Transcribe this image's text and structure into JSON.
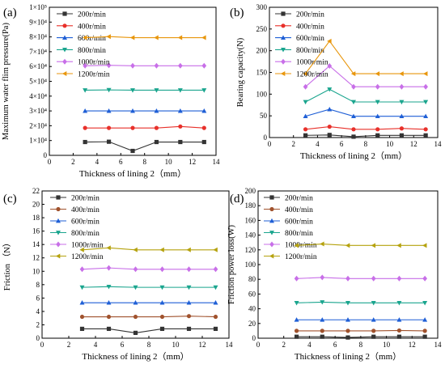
{
  "chart_data": [
    {
      "type": "line",
      "panel_label": "(a)",
      "xlabel": "Thickness of lining 2（mm）",
      "ylabel": "Maximum water flim pressure(Pa)",
      "xlim": [
        0,
        14
      ],
      "ylim": [
        0,
        100000
      ],
      "xticks": [
        "0",
        "2",
        "4",
        "6",
        "8",
        "10",
        "12",
        "14"
      ],
      "yticks": [
        "0",
        "1×10⁴",
        "2×10⁴",
        "3×10⁴",
        "4×10⁴",
        "5×10⁴",
        "6×10⁴",
        "7×10⁴",
        "8×10⁴",
        "9×10⁴",
        "1×10⁵"
      ],
      "legend_position": "top-left",
      "x": [
        3,
        5,
        7,
        9,
        11,
        13
      ],
      "series": [
        {
          "name": "200r/min",
          "color": "#333333",
          "marker": "square",
          "values": [
            9000,
            9200,
            3000,
            9000,
            9000,
            9000
          ]
        },
        {
          "name": "400r/min",
          "color": "#e8302a",
          "marker": "circle",
          "values": [
            18500,
            18500,
            18500,
            18500,
            19500,
            18500
          ]
        },
        {
          "name": "600r/min",
          "color": "#1f5fd6",
          "marker": "triangle-up",
          "values": [
            30000,
            30000,
            30000,
            30000,
            30000,
            30000
          ]
        },
        {
          "name": "800r/min",
          "color": "#1aa58e",
          "marker": "triangle-down",
          "values": [
            44000,
            44200,
            44000,
            44000,
            44000,
            44000
          ]
        },
        {
          "name": "1000r/min",
          "color": "#c86fe8",
          "marker": "diamond",
          "values": [
            60500,
            60800,
            60500,
            60500,
            60500,
            60500
          ]
        },
        {
          "name": "1200r/min",
          "color": "#e8960c",
          "marker": "triangle-left",
          "values": [
            79500,
            80200,
            79500,
            79500,
            79500,
            79500
          ]
        }
      ]
    },
    {
      "type": "line",
      "panel_label": "(b)",
      "xlabel": "Thickness of lining 2（mm）",
      "ylabel": "Bearing capacity(N)",
      "xlim": [
        0,
        14
      ],
      "ylim": [
        0,
        300
      ],
      "xticks": [
        "0",
        "2",
        "4",
        "6",
        "8",
        "10",
        "12",
        "14"
      ],
      "yticks": [
        "0",
        "50",
        "100",
        "150",
        "200",
        "250",
        "300"
      ],
      "legend_position": "top-left",
      "x": [
        3,
        5,
        7,
        9,
        11,
        13
      ],
      "series": [
        {
          "name": "200r/min",
          "color": "#333333",
          "marker": "square",
          "values": [
            5,
            6,
            2,
            5,
            5,
            5
          ]
        },
        {
          "name": "400r/min",
          "color": "#e8302a",
          "marker": "circle",
          "values": [
            19,
            25,
            19,
            19,
            21,
            19
          ]
        },
        {
          "name": "600r/min",
          "color": "#1f5fd6",
          "marker": "triangle-up",
          "values": [
            49,
            65,
            49,
            49,
            49,
            49
          ]
        },
        {
          "name": "800r/min",
          "color": "#1aa58e",
          "marker": "triangle-down",
          "values": [
            82,
            111,
            82,
            82,
            82,
            82
          ]
        },
        {
          "name": "1000r/min",
          "color": "#c86fe8",
          "marker": "diamond",
          "values": [
            117,
            165,
            117,
            117,
            117,
            117
          ]
        },
        {
          "name": "1200r/min",
          "color": "#e8960c",
          "marker": "triangle-left",
          "values": [
            147,
            222,
            147,
            147,
            147,
            147
          ]
        }
      ]
    },
    {
      "type": "line",
      "panel_label": "(c)",
      "xlabel": "Thickness of lining 2（mm）",
      "ylabel": "Friction （N）",
      "xlim": [
        0,
        14
      ],
      "ylim": [
        0,
        22
      ],
      "xticks": [
        "0",
        "2",
        "4",
        "6",
        "8",
        "10",
        "12",
        "14"
      ],
      "yticks": [
        "0",
        "2",
        "4",
        "6",
        "8",
        "10",
        "12",
        "14",
        "16",
        "18",
        "20",
        "22"
      ],
      "legend_position": "top-left",
      "x": [
        3,
        5,
        7,
        9,
        11,
        13
      ],
      "series": [
        {
          "name": "200r/min",
          "color": "#333333",
          "marker": "square",
          "values": [
            1.4,
            1.4,
            0.8,
            1.4,
            1.4,
            1.4
          ]
        },
        {
          "name": "400r/min",
          "color": "#a0522d",
          "marker": "circle",
          "values": [
            3.2,
            3.2,
            3.2,
            3.2,
            3.3,
            3.2
          ]
        },
        {
          "name": "600r/min",
          "color": "#1f5fd6",
          "marker": "triangle-up",
          "values": [
            5.3,
            5.3,
            5.3,
            5.3,
            5.3,
            5.3
          ]
        },
        {
          "name": "800r/min",
          "color": "#1aa58e",
          "marker": "triangle-down",
          "values": [
            7.6,
            7.7,
            7.6,
            7.6,
            7.6,
            7.6
          ]
        },
        {
          "name": "1000r/min",
          "color": "#c86fe8",
          "marker": "diamond",
          "values": [
            10.3,
            10.5,
            10.3,
            10.3,
            10.3,
            10.3
          ]
        },
        {
          "name": "1200r/min",
          "color": "#b5a20e",
          "marker": "triangle-left",
          "values": [
            13.2,
            13.5,
            13.2,
            13.2,
            13.2,
            13.2
          ]
        }
      ]
    },
    {
      "type": "line",
      "panel_label": "(d)",
      "xlabel": "Thickness of lining 2（mm）",
      "ylabel": "Friction  power loss(W)",
      "xlim": [
        0,
        14
      ],
      "ylim": [
        0,
        200
      ],
      "xticks": [
        "0",
        "2",
        "4",
        "6",
        "8",
        "10",
        "12",
        "14"
      ],
      "yticks": [
        "0",
        "20",
        "40",
        "60",
        "80",
        "100",
        "120",
        "140",
        "160",
        "180",
        "200"
      ],
      "legend_position": "top-left",
      "x": [
        3,
        5,
        7,
        9,
        11,
        13
      ],
      "series": [
        {
          "name": "200r/min",
          "color": "#333333",
          "marker": "square",
          "values": [
            2,
            2,
            1,
            2,
            2,
            2
          ]
        },
        {
          "name": "400r/min",
          "color": "#a0522d",
          "marker": "circle",
          "values": [
            10,
            10,
            10,
            10,
            10.5,
            10
          ]
        },
        {
          "name": "600r/min",
          "color": "#1f5fd6",
          "marker": "triangle-up",
          "values": [
            25,
            25,
            25,
            25,
            25,
            25
          ]
        },
        {
          "name": "800r/min",
          "color": "#1aa58e",
          "marker": "triangle-down",
          "values": [
            48,
            49,
            48,
            48,
            48,
            48
          ]
        },
        {
          "name": "1000r/min",
          "color": "#c86fe8",
          "marker": "diamond",
          "values": [
            81,
            82.5,
            81,
            81,
            81,
            81
          ]
        },
        {
          "name": "1200r/min",
          "color": "#b5a20e",
          "marker": "triangle-left",
          "values": [
            126,
            128,
            126,
            126,
            126,
            126
          ]
        }
      ]
    }
  ]
}
